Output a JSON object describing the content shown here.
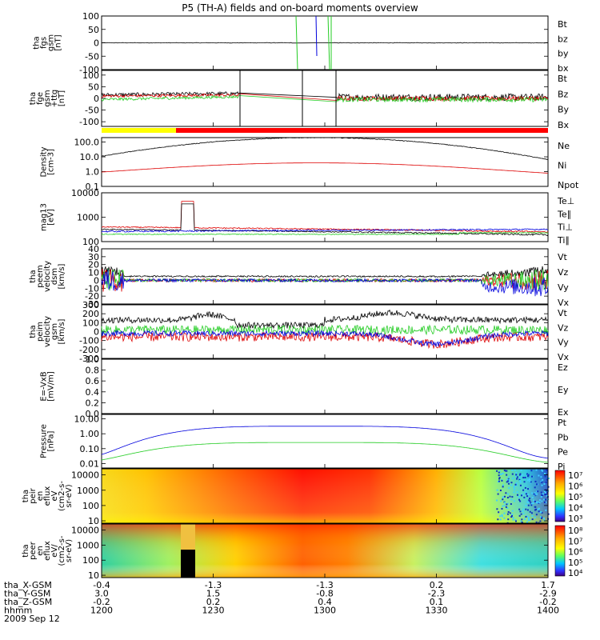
{
  "chart_data": {
    "type": "line",
    "title": "P5 (TH-A) fields and on-board moments overview",
    "colors": {
      "black": "#000000",
      "red": "#dd0000",
      "green": "#22cc22",
      "blue": "#0000dd",
      "yellow": "#ffff00"
    },
    "panels": [
      {
        "id": "fgs",
        "ylabel": [
          "tha",
          "fgs",
          "gsm",
          "[nT]"
        ],
        "yscale": "linear",
        "ylim": [
          -100,
          100
        ],
        "ticks": [
          "100",
          "50",
          "0",
          "-50",
          "-100"
        ],
        "tick_values": [
          100,
          50,
          0,
          -50,
          -100
        ],
        "legend": [
          {
            "label": "Bt",
            "color": "#000000"
          },
          {
            "label": "bz",
            "color": "#dd0000"
          },
          {
            "label": "by",
            "color": "#22cc22"
          },
          {
            "label": "bx",
            "color": "#0000dd"
          }
        ]
      },
      {
        "id": "fgh",
        "ylabel": [
          "tha",
          "fge",
          "gsm",
          "+ttg",
          "[nT]"
        ],
        "yscale": "linear",
        "ylim": [
          -120,
          120
        ],
        "ticks": [
          "100",
          "50",
          "0",
          "-50",
          "-100"
        ],
        "tick_values": [
          100,
          50,
          0,
          -50,
          -100
        ],
        "legend": [
          {
            "label": "Bt",
            "color": "#000000"
          },
          {
            "label": "Bz",
            "color": "#dd0000"
          },
          {
            "label": "By",
            "color": "#22cc22"
          },
          {
            "label": "Bx",
            "color": "#0000dd"
          }
        ]
      },
      {
        "id": "density",
        "ylabel": [
          "Density",
          "[cm-3]"
        ],
        "yscale": "log",
        "ylim": [
          0.1,
          200
        ],
        "ticks": [
          "100.0",
          "10.0",
          "1.0",
          "0.1"
        ],
        "tick_values": [
          100,
          10,
          1,
          0.1
        ],
        "legend": [
          {
            "label": "Ne",
            "color": "#dd0000"
          },
          {
            "label": "Ni",
            "color": "#000000"
          },
          {
            "label": "Npot",
            "color": "#0000dd"
          }
        ]
      },
      {
        "id": "temp",
        "ylabel": [
          "mag13",
          "[eV]"
        ],
        "yscale": "log",
        "ylim": [
          100,
          10000
        ],
        "ticks": [
          "10000",
          "1000",
          "100"
        ],
        "tick_values": [
          10000,
          1000,
          100
        ],
        "legend": [
          {
            "label": "Te⊥",
            "color": "#dd0000"
          },
          {
            "label": "Te∥",
            "color": "#000000"
          },
          {
            "label": "Ti⊥",
            "color": "#0000dd"
          },
          {
            "label": "Ti∥",
            "color": "#22cc22"
          }
        ]
      },
      {
        "id": "vel_e",
        "ylabel": [
          "tha",
          "peem",
          "velocity",
          "dsm",
          "[km/s]"
        ],
        "yscale": "linear",
        "ylim": [
          -30,
          40
        ],
        "ticks": [
          "40",
          "30",
          "20",
          "10",
          "0",
          "-10",
          "-20",
          "-30"
        ],
        "tick_values": [
          40,
          30,
          20,
          10,
          0,
          -10,
          -20,
          -30
        ],
        "legend": [
          {
            "label": "Vt",
            "color": "#000000"
          },
          {
            "label": "Vz",
            "color": "#dd0000"
          },
          {
            "label": "Vy",
            "color": "#22cc22"
          },
          {
            "label": "Vx",
            "color": "#0000dd"
          }
        ]
      },
      {
        "id": "vel_i",
        "ylabel": [
          "tha",
          "peim",
          "velocity",
          "gsm",
          "[km/s]"
        ],
        "yscale": "linear",
        "ylim": [
          -300,
          300
        ],
        "ticks": [
          "300",
          "200",
          "100",
          "0",
          "-100",
          "-200",
          "-300"
        ],
        "tick_values": [
          300,
          200,
          100,
          0,
          -100,
          -200,
          -300
        ],
        "legend": [
          {
            "label": "Vt",
            "color": "#000000"
          },
          {
            "label": "Vz",
            "color": "#dd0000"
          },
          {
            "label": "Vy",
            "color": "#22cc22"
          },
          {
            "label": "Vx",
            "color": "#0000dd"
          }
        ]
      },
      {
        "id": "efield",
        "ylabel": [
          "E=-VxB",
          "[mV/m]"
        ],
        "yscale": "linear",
        "ylim": [
          0,
          1
        ],
        "ticks": [
          "1.0",
          "0.8",
          "0.6",
          "0.4",
          "0.2",
          "0.0"
        ],
        "tick_values": [
          1.0,
          0.8,
          0.6,
          0.4,
          0.2,
          0.0
        ],
        "legend": [
          {
            "label": "Ez",
            "color": "#dd0000"
          },
          {
            "label": "Ey",
            "color": "#22cc22"
          },
          {
            "label": "Ex",
            "color": "#0000dd"
          }
        ]
      },
      {
        "id": "pressure",
        "ylabel": [
          "Pressure",
          "[nPa]"
        ],
        "yscale": "log",
        "ylim": [
          0.005,
          20
        ],
        "ticks": [
          "10.00",
          "1.00",
          "0.10",
          "0.01"
        ],
        "tick_values": [
          10,
          1,
          0.1,
          0.01
        ],
        "legend": [
          {
            "label": "Pt",
            "color": "#000000"
          },
          {
            "label": "Pb",
            "color": "#dd0000"
          },
          {
            "label": "Pe",
            "color": "#22cc22"
          },
          {
            "label": "Pi",
            "color": "#0000dd"
          }
        ]
      },
      {
        "id": "ion_spec",
        "ylabel": [
          "tha",
          "peir",
          "en",
          "eflux",
          "eV",
          "(cm2-s-",
          "sr-eV)"
        ],
        "yscale": "log",
        "ylim": [
          7,
          25000
        ],
        "ticks": [
          "10000",
          "1000",
          "100",
          "10"
        ],
        "tick_values": [
          10000,
          1000,
          100,
          10
        ],
        "colorbar": [
          "10⁷",
          "10⁶",
          "10⁵",
          "10⁴",
          "10³"
        ]
      },
      {
        "id": "ele_spec",
        "ylabel": [
          "tha",
          "peer",
          "en",
          "eflux",
          "eV/",
          "(cm2-s-",
          "sr-eV)"
        ],
        "yscale": "log",
        "ylim": [
          7,
          25000
        ],
        "ticks": [
          "10000",
          "1000",
          "100",
          "10"
        ],
        "tick_values": [
          10000,
          1000,
          100,
          10
        ],
        "colorbar": [
          "10⁸",
          "10⁷",
          "10⁶",
          "10⁵",
          "10⁴"
        ]
      }
    ],
    "x_axis": {
      "rows": [
        {
          "label": "tha_X-GSM",
          "values": [
            "-0.4",
            "-1.3",
            "-1.3",
            "0.2",
            "1.7"
          ]
        },
        {
          "label": "tha_Y-GSM",
          "values": [
            "3.0",
            "1.5",
            "-0.8",
            "-2.3",
            "-2.9"
          ]
        },
        {
          "label": "tha_Z-GSM",
          "values": [
            "-0.2",
            "0.2",
            "0.4",
            "0.1",
            "-0.2"
          ]
        },
        {
          "label": "hhmm",
          "values": [
            "1200",
            "1230",
            "1300",
            "1330",
            "1400"
          ]
        }
      ],
      "date": "2009 Sep 12",
      "time_range_min": [
        0,
        120
      ],
      "tick_times_min": [
        0,
        30,
        60,
        90,
        120
      ]
    }
  }
}
